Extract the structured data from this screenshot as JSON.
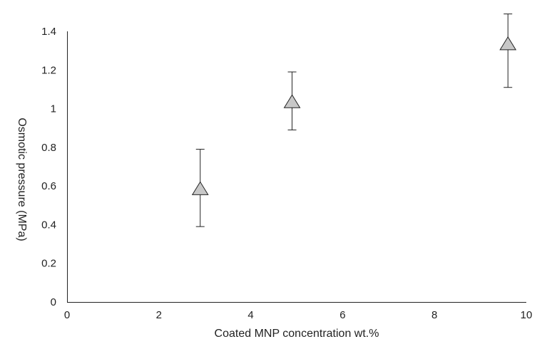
{
  "chart_data": {
    "type": "scatter",
    "title": "",
    "xlabel": "Coated MNP concentration wt.%",
    "ylabel": "Osmotic pressure (MPa)",
    "xlim": [
      0,
      10
    ],
    "ylim": [
      0,
      1.4
    ],
    "xticks": [
      "0",
      "2",
      "4",
      "6",
      "8",
      "10"
    ],
    "yticks": [
      "0",
      "0.2",
      "0.4",
      "0.6",
      "0.8",
      "1",
      "1.2",
      "1.4"
    ],
    "grid": false,
    "legend": "none",
    "marker": "triangle",
    "marker_color": "#c8c8c8",
    "series": [
      {
        "points": [
          {
            "x": 2.9,
            "y": 0.58,
            "yerr_low": 0.39,
            "yerr_high": 0.79
          },
          {
            "x": 4.9,
            "y": 1.03,
            "yerr_low": 0.89,
            "yerr_high": 1.19
          },
          {
            "x": 9.6,
            "y": 1.33,
            "yerr_low": 1.11,
            "yerr_high": 1.49
          }
        ]
      }
    ]
  }
}
